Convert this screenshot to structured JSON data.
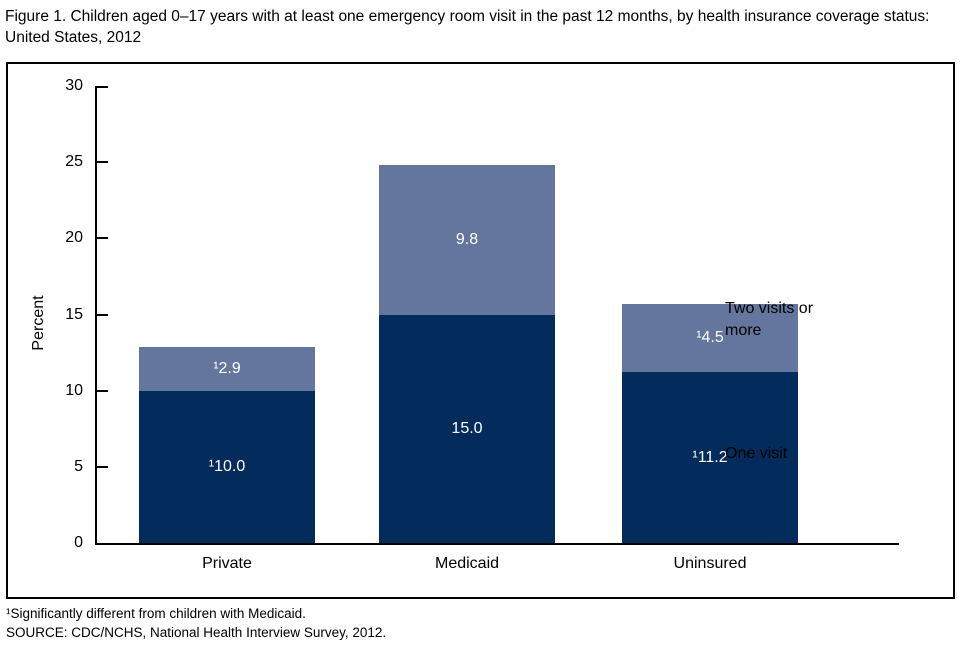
{
  "title": "Figure 1. Children aged 0–17 years with at least one emergency room visit in the past 12 months, by health insurance coverage status: United States, 2012",
  "chart_data": {
    "type": "bar",
    "stacked": true,
    "categories": [
      "Private",
      "Medicaid",
      "Uninsured"
    ],
    "series": [
      {
        "name": "One visit",
        "values": [
          10.0,
          15.0,
          11.2
        ],
        "labels": [
          "¹10.0",
          "15.0",
          "¹11.2"
        ],
        "color": "#032b5c"
      },
      {
        "name": "Two visits or more",
        "values": [
          2.9,
          9.8,
          4.5
        ],
        "labels": [
          "¹2.9",
          "9.8",
          "¹4.5"
        ],
        "color": "#64769e"
      }
    ],
    "title": "Figure 1. Children aged 0–17 years with at least one emergency room visit in the past 12 months, by health insurance coverage status: United States, 2012",
    "xlabel": "",
    "ylabel": "Percent",
    "ylim": [
      0,
      30
    ],
    "yticks": [
      0,
      5,
      10,
      15,
      20,
      25,
      30
    ],
    "grid": false,
    "legend_position": "right-inline"
  },
  "legend": {
    "two_visits": "Two visits or more",
    "one_visit": "One visit"
  },
  "footnotes": {
    "significance": "¹Significantly different from children with Medicaid.",
    "source": "SOURCE: CDC/NCHS, National Health Interview Survey, 2012."
  },
  "colors": {
    "one_visit": "#032b5c",
    "two_visits": "#64769e",
    "axis": "#000000",
    "value_text": "#ffffff"
  }
}
